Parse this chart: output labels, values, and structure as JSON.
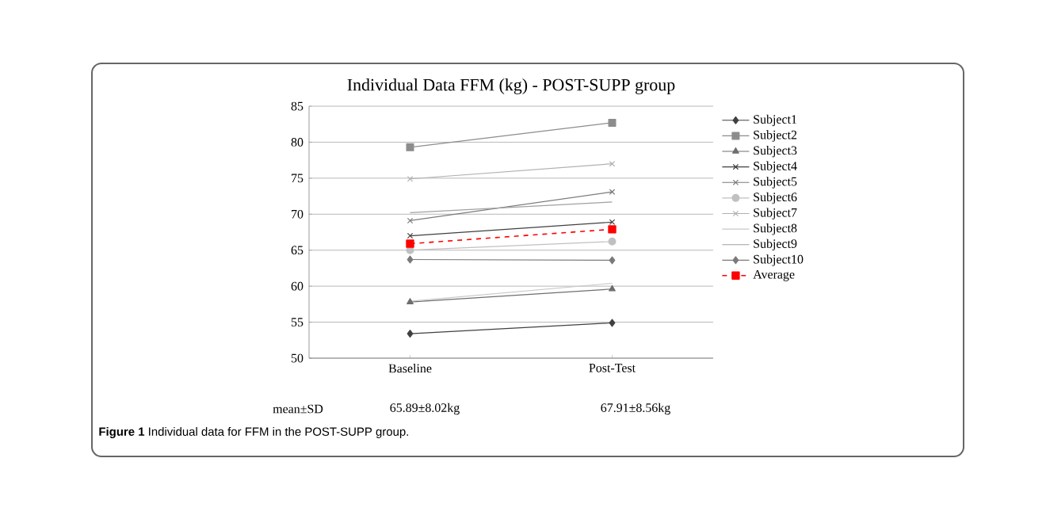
{
  "chart_data": {
    "type": "line",
    "title": "Individual  Data FFM (kg)  - POST-SUPP group",
    "categories": [
      "Baseline",
      "Post-Test"
    ],
    "series": [
      {
        "name": "Subject1",
        "color": "#404040",
        "marker": "diamond",
        "values": [
          53.4,
          54.9
        ]
      },
      {
        "name": "Subject2",
        "color": "#8c8c8c",
        "marker": "square",
        "values": [
          79.3,
          82.7
        ]
      },
      {
        "name": "Subject3",
        "color": "#6e6e6e",
        "marker": "triangle",
        "values": [
          57.8,
          59.6
        ]
      },
      {
        "name": "Subject4",
        "color": "#404040",
        "marker": "cross",
        "values": [
          67.0,
          68.9
        ]
      },
      {
        "name": "Subject5",
        "color": "#7a7a7a",
        "marker": "cross",
        "values": [
          69.1,
          73.1
        ]
      },
      {
        "name": "Subject6",
        "color": "#c0c0c0",
        "marker": "circle",
        "values": [
          65.0,
          66.2
        ]
      },
      {
        "name": "Subject7",
        "color": "#b0b0b0",
        "marker": "cross",
        "values": [
          74.9,
          77.0
        ]
      },
      {
        "name": "Subject8",
        "color": "#c8c8c8",
        "marker": "none",
        "values": [
          57.9,
          60.4
        ]
      },
      {
        "name": "Subject9",
        "color": "#a0a0a0",
        "marker": "none",
        "values": [
          70.2,
          71.7
        ]
      },
      {
        "name": "Subject10",
        "color": "#7a7a7a",
        "marker": "diamond",
        "values": [
          63.7,
          63.6
        ]
      },
      {
        "name": "Average",
        "color": "#ff0000",
        "marker": "square",
        "line_style": "dashed",
        "values": [
          65.9,
          67.9
        ]
      }
    ],
    "ylim": [
      50,
      85
    ],
    "yticks": [
      50,
      55,
      60,
      65,
      70,
      75,
      80,
      85
    ],
    "grid": "y",
    "legend": "right",
    "annotations": [
      "mean±SD",
      "65.89±8.02kg",
      "67.91±8.56kg",
      "**Figure 1** Individual data for FFM in the POST-SUPP group."
    ]
  }
}
